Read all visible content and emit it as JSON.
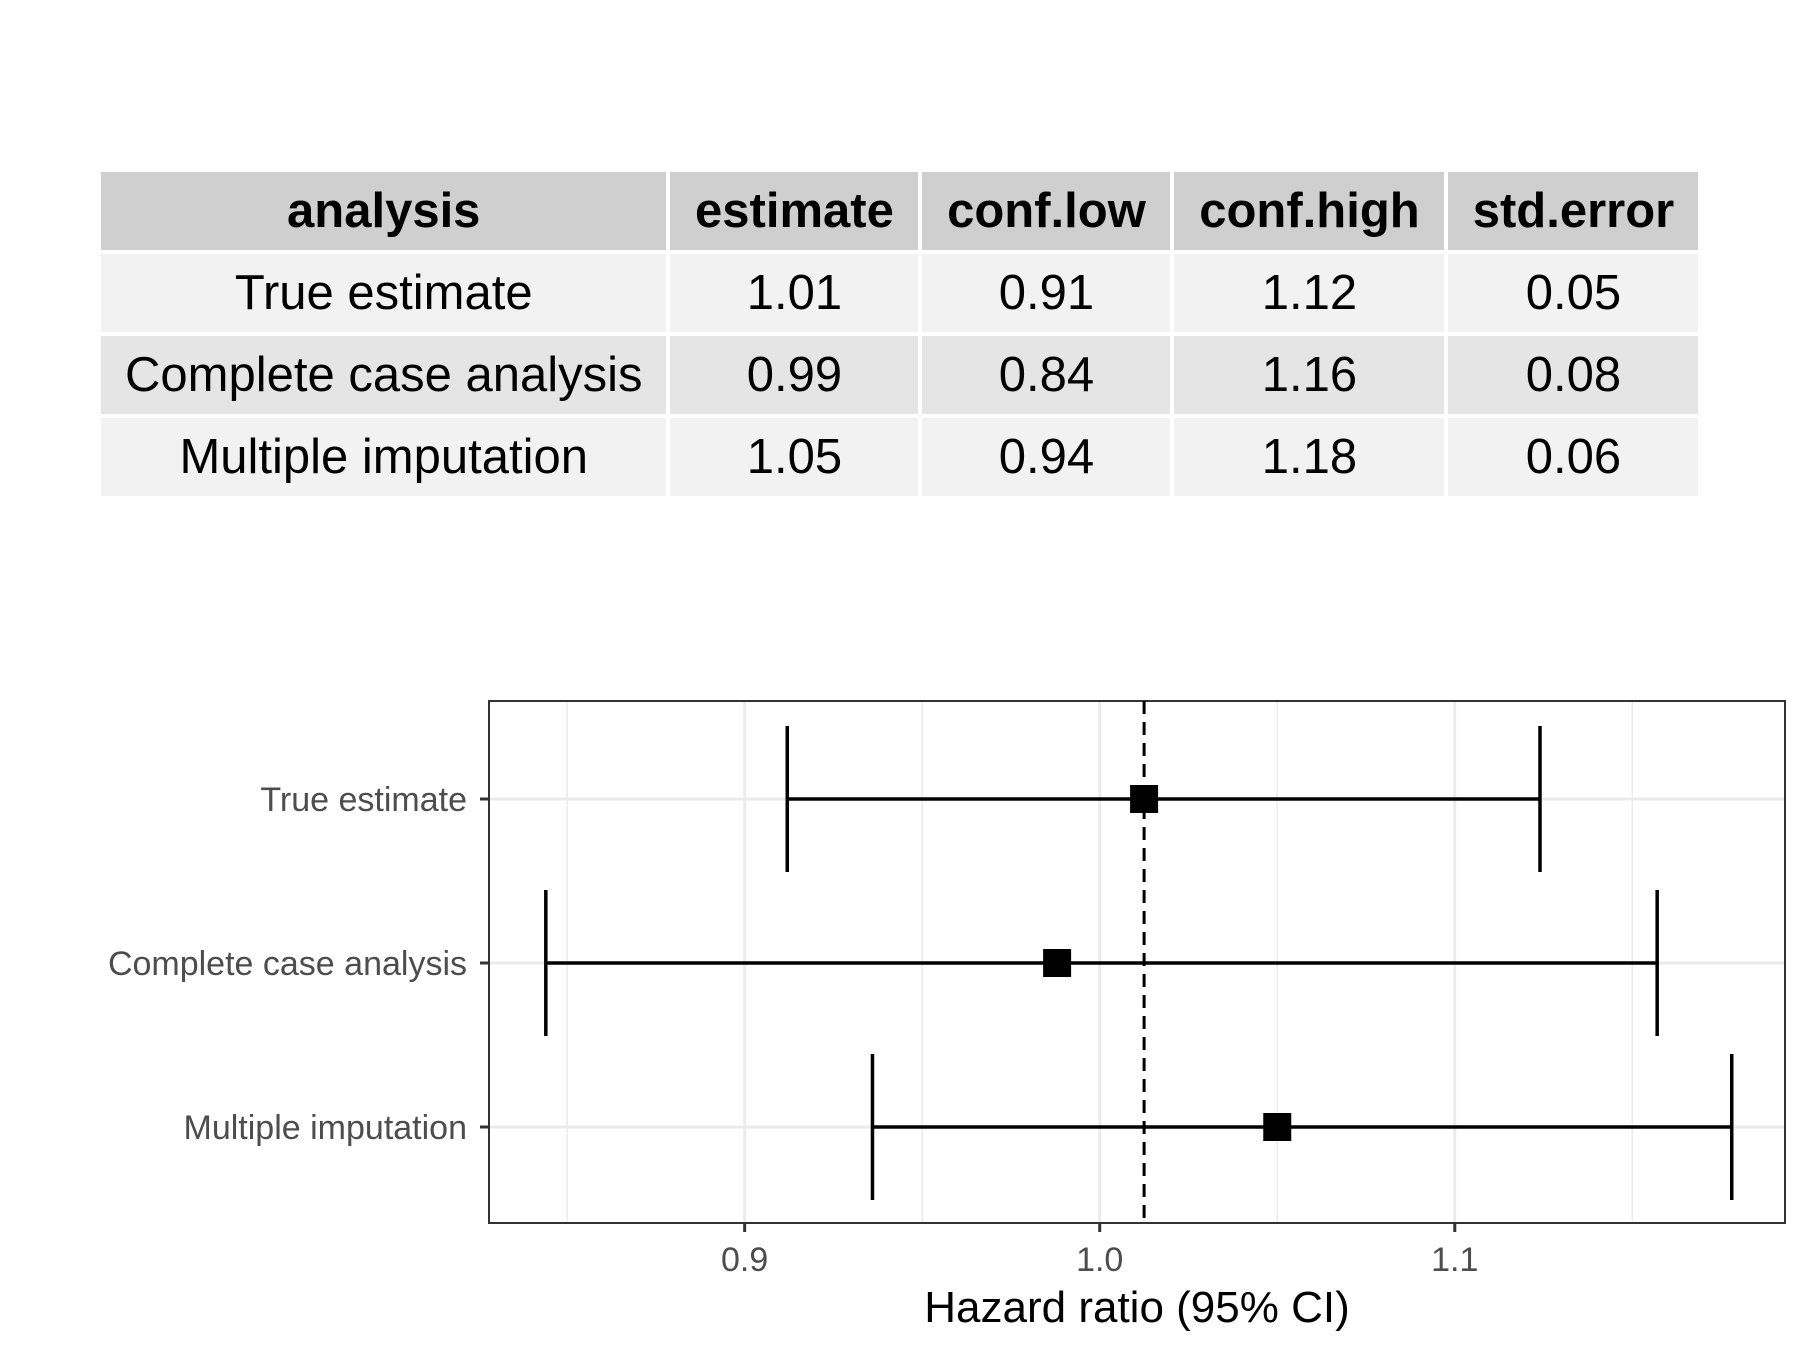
{
  "table": {
    "columns": [
      "analysis",
      "estimate",
      "conf.low",
      "conf.high",
      "std.error"
    ],
    "rows": [
      [
        "True estimate",
        "1.01",
        "0.91",
        "1.12",
        "0.05"
      ],
      [
        "Complete case analysis",
        "0.99",
        "0.84",
        "1.16",
        "0.08"
      ],
      [
        "Multiple imputation",
        "1.05",
        "0.94",
        "1.18",
        "0.06"
      ]
    ]
  },
  "chart_data": {
    "type": "forest",
    "xlabel": "Hazard ratio (95% CI)",
    "ylabel": "",
    "title": "",
    "xlim": [
      0.828,
      1.193
    ],
    "xticks": [
      "0.9",
      "1.0",
      "1.1"
    ],
    "reference_line": 1.0125,
    "categories": [
      "True estimate",
      "Complete case analysis",
      "Multiple imputation"
    ],
    "estimate": [
      1.0125,
      0.988,
      1.05
    ],
    "conf_low": [
      0.912,
      0.844,
      0.936
    ],
    "conf_high": [
      1.124,
      1.157,
      1.178
    ],
    "grid": true,
    "marker": "square",
    "colors": {
      "mark": "#000000",
      "grid": "#ebebeb",
      "panel_border": "#333333",
      "header_bg": "#cfcfcf"
    }
  }
}
